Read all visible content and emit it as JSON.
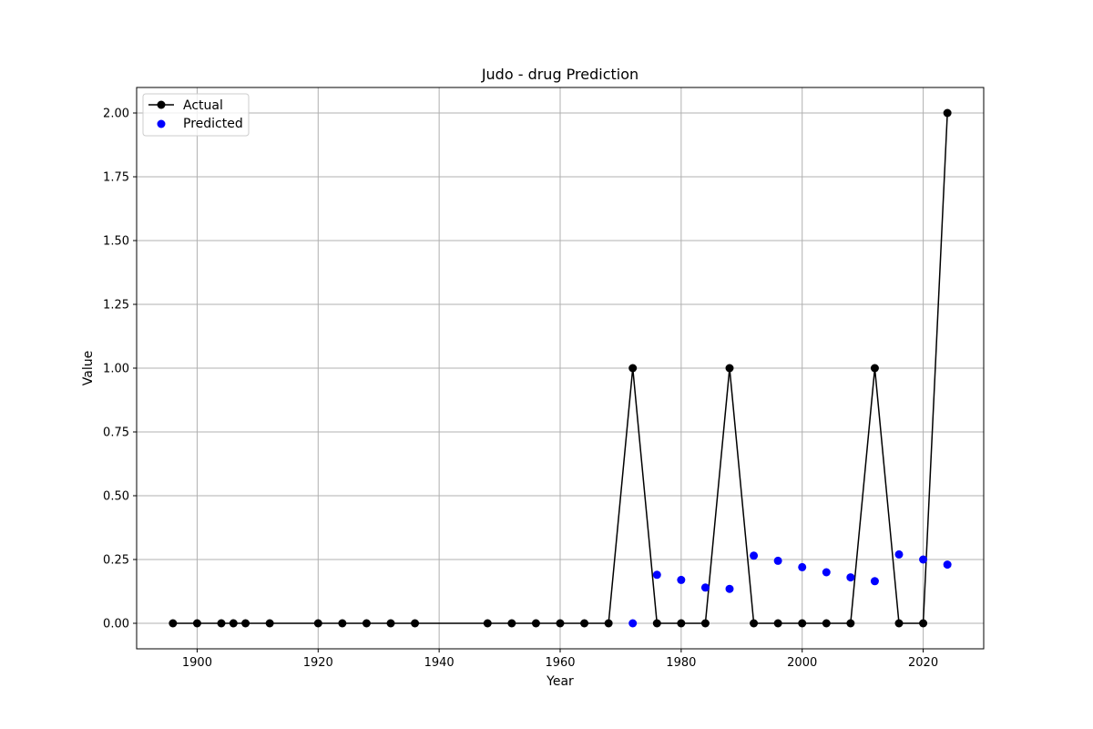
{
  "chart_data": {
    "type": "line",
    "title": "Judo - drug Prediction",
    "xlabel": "Year",
    "ylabel": "Value",
    "xlim": [
      1890,
      2030
    ],
    "ylim": [
      -0.1,
      2.1
    ],
    "xticks": [
      1900,
      1920,
      1940,
      1960,
      1980,
      2000,
      2020
    ],
    "xtick_labels": [
      "1900",
      "1920",
      "1940",
      "1960",
      "1980",
      "2000",
      "2020"
    ],
    "yticks": [
      0.0,
      0.25,
      0.5,
      0.75,
      1.0,
      1.25,
      1.5,
      1.75,
      2.0
    ],
    "ytick_labels": [
      "0.00",
      "0.25",
      "0.50",
      "0.75",
      "1.00",
      "1.25",
      "1.50",
      "1.75",
      "2.00"
    ],
    "grid": true,
    "legend_position": "top-left",
    "series": [
      {
        "name": "Actual",
        "kind": "line-marker",
        "color": "#000000",
        "x": [
          1896,
          1900,
          1904,
          1906,
          1908,
          1912,
          1920,
          1924,
          1928,
          1932,
          1936,
          1948,
          1952,
          1956,
          1960,
          1964,
          1968,
          1972,
          1976,
          1980,
          1984,
          1988,
          1992,
          1996,
          2000,
          2004,
          2008,
          2012,
          2016,
          2020,
          2024
        ],
        "y": [
          0,
          0,
          0,
          0,
          0,
          0,
          0,
          0,
          0,
          0,
          0,
          0,
          0,
          0,
          0,
          0,
          0,
          1,
          0,
          0,
          0,
          1,
          0,
          0,
          0,
          0,
          0,
          1,
          0,
          0,
          2
        ]
      },
      {
        "name": "Predicted",
        "kind": "scatter",
        "color": "#0000ff",
        "x": [
          1972,
          1976,
          1980,
          1984,
          1988,
          1992,
          1996,
          2000,
          2004,
          2008,
          2012,
          2016,
          2020,
          2024
        ],
        "y": [
          0.0,
          0.19,
          0.17,
          0.14,
          0.135,
          0.265,
          0.245,
          0.22,
          0.2,
          0.18,
          0.165,
          0.27,
          0.25,
          0.23
        ]
      }
    ]
  }
}
